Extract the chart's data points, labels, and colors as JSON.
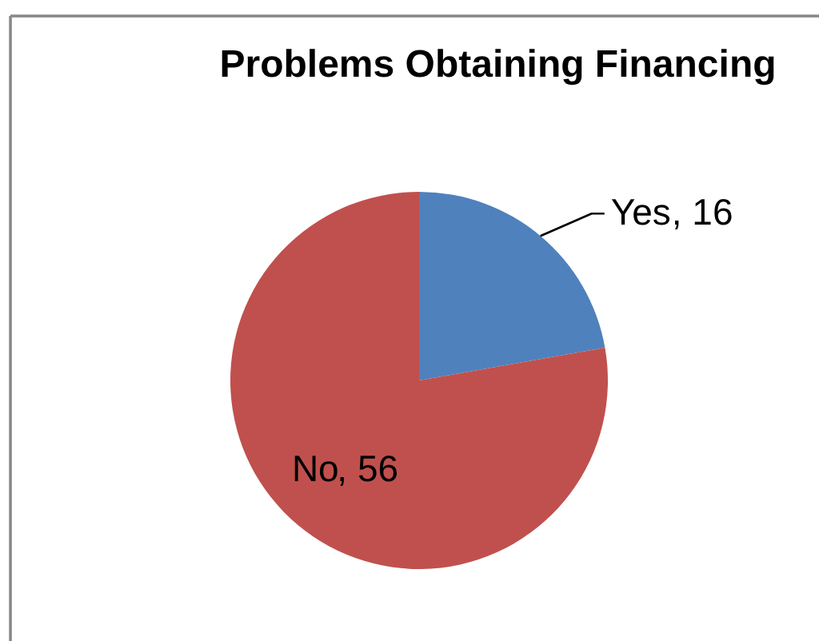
{
  "chart_data": {
    "type": "pie",
    "title": "Problems Obtaining Financing",
    "categories": [
      "Yes",
      "No"
    ],
    "values": [
      16,
      56
    ],
    "colors": [
      "#4f81bd",
      "#c0504d"
    ],
    "value_labels": [
      ", 16",
      ", 56"
    ]
  }
}
